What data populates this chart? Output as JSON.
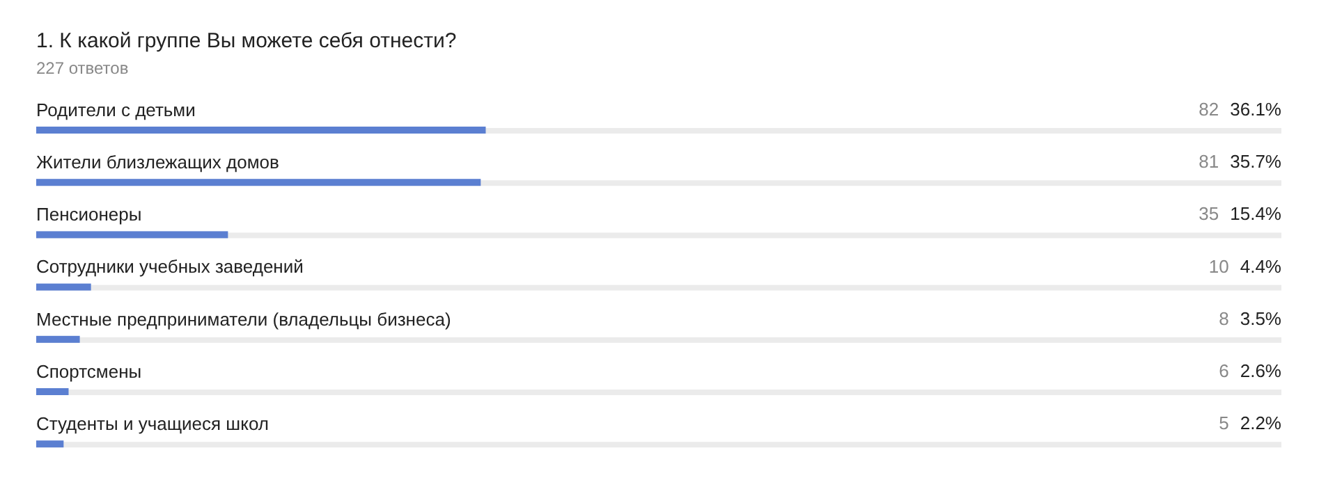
{
  "chart_data": {
    "type": "bar",
    "orientation": "horizontal",
    "title": "1. К какой группе Вы можете себя отнести?",
    "subtitle": "227 ответов",
    "categories": [
      "Родители с детьми",
      "Жители близлежащих домов",
      "Пенсионеры",
      "Сотрудники учебных заведений",
      "Местные предприниматели (владельцы бизнеса)",
      "Спортсмены",
      "Студенты и учащиеся школ"
    ],
    "values": [
      36.1,
      35.7,
      15.4,
      4.4,
      3.5,
      2.6,
      2.2
    ],
    "value_labels": [
      "82 36.1%",
      "81 35.7%",
      "35 15.4%",
      "10 4.4%",
      "8 3.5%",
      "6 2.6%",
      "5 2.2%"
    ],
    "color": "#5b7fd1",
    "xlim": [
      0,
      100
    ]
  }
}
